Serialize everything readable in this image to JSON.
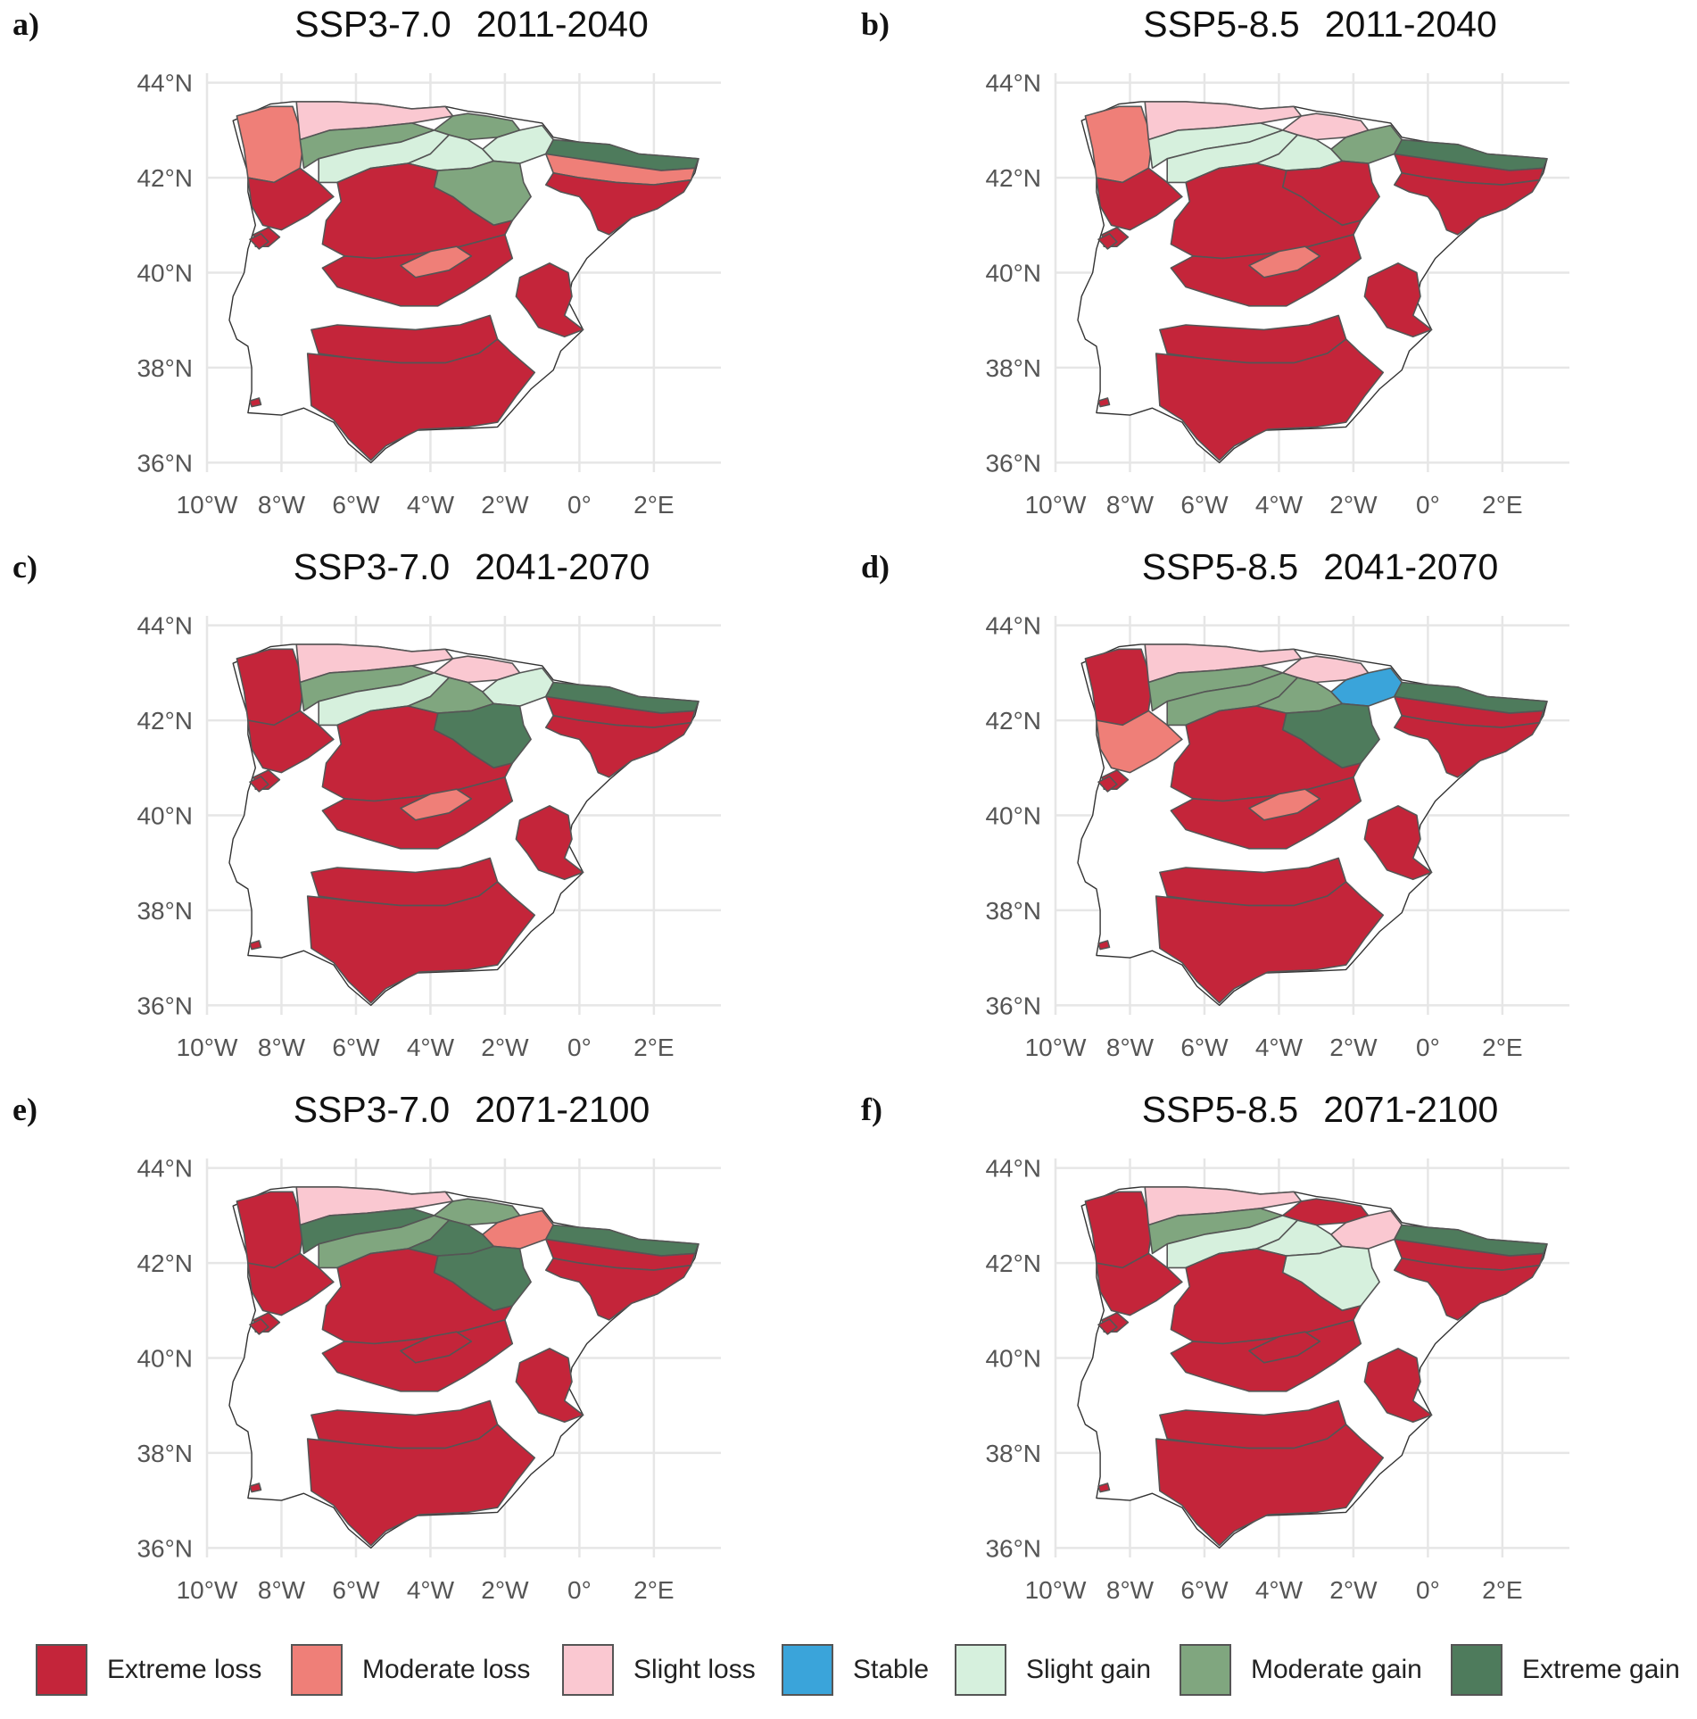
{
  "categories": [
    {
      "key": "EL",
      "label": "Extreme loss",
      "color": "#C4253A"
    },
    {
      "key": "ML",
      "label": "Moderate loss",
      "color": "#EF7F78"
    },
    {
      "key": "SL",
      "label": "Slight loss",
      "color": "#FAC8D1"
    },
    {
      "key": "ST",
      "label": "Stable",
      "color": "#3AA4DA"
    },
    {
      "key": "SG",
      "label": "Slight gain",
      "color": "#D6F0DD"
    },
    {
      "key": "MG",
      "label": "Moderate gain",
      "color": "#80A67F"
    },
    {
      "key": "XG",
      "label": "Extreme gain",
      "color": "#4E7B5C"
    }
  ],
  "axes": {
    "lon_range": [
      -10,
      3.8
    ],
    "lat_range": [
      35.8,
      44.2
    ],
    "x_ticks": [
      {
        "value": -10,
        "label": "10°W"
      },
      {
        "value": -8,
        "label": "8°W"
      },
      {
        "value": -6,
        "label": "6°W"
      },
      {
        "value": -4,
        "label": "4°W"
      },
      {
        "value": -2,
        "label": "2°W"
      },
      {
        "value": 0,
        "label": "0°"
      },
      {
        "value": 2,
        "label": "2°E"
      }
    ],
    "y_ticks": [
      {
        "value": 44,
        "label": "44°N"
      },
      {
        "value": 42,
        "label": "42°N"
      },
      {
        "value": 40,
        "label": "40°N"
      },
      {
        "value": 38,
        "label": "38°N"
      },
      {
        "value": 36,
        "label": "36°N"
      }
    ]
  },
  "panels": [
    {
      "id": "a",
      "letter": "a)",
      "scenario": "SSP3-7.0",
      "period": "2011-2040",
      "regions": {
        "galicia_w": "ML",
        "galicia_s": "EL",
        "asturias": "SL",
        "leon_n": "MG",
        "cantabria": "MG",
        "duero_n": "SG",
        "ebro_head": "SG",
        "navarra": "SG",
        "iberico": "MG",
        "pyrenees": "XG",
        "pyr_south": "ML",
        "cataluna": "EL",
        "duero": "EL",
        "tajo": "EL",
        "tajo_c": "ML",
        "guadiana": "EL",
        "valencia": "EL",
        "andalucia": "EL",
        "porto": "EL",
        "small_w": "EL",
        "small_sw": "EL"
      }
    },
    {
      "id": "b",
      "letter": "b)",
      "scenario": "SSP5-8.5",
      "period": "2011-2040",
      "regions": {
        "galicia_w": "ML",
        "galicia_s": "EL",
        "asturias": "SL",
        "leon_n": "SG",
        "cantabria": "SL",
        "duero_n": "SG",
        "ebro_head": "SG",
        "navarra": "MG",
        "iberico": "EL",
        "pyrenees": "XG",
        "pyr_south": "EL",
        "cataluna": "EL",
        "duero": "EL",
        "tajo": "EL",
        "tajo_c": "ML",
        "guadiana": "EL",
        "valencia": "EL",
        "andalucia": "EL",
        "porto": "EL",
        "small_w": "EL",
        "small_sw": "EL"
      }
    },
    {
      "id": "c",
      "letter": "c)",
      "scenario": "SSP3-7.0",
      "period": "2041-2070",
      "regions": {
        "galicia_w": "EL",
        "galicia_s": "EL",
        "asturias": "SL",
        "leon_n": "MG",
        "cantabria": "SL",
        "duero_n": "SG",
        "ebro_head": "MG",
        "navarra": "SG",
        "iberico": "XG",
        "pyrenees": "XG",
        "pyr_south": "EL",
        "cataluna": "EL",
        "duero": "EL",
        "tajo": "EL",
        "tajo_c": "ML",
        "guadiana": "EL",
        "valencia": "EL",
        "andalucia": "EL",
        "porto": "EL",
        "small_w": "EL",
        "small_sw": "EL"
      }
    },
    {
      "id": "d",
      "letter": "d)",
      "scenario": "SSP5-8.5",
      "period": "2041-2070",
      "regions": {
        "galicia_w": "EL",
        "galicia_s": "ML",
        "asturias": "SL",
        "leon_n": "MG",
        "cantabria": "SL",
        "duero_n": "MG",
        "ebro_head": "MG",
        "navarra": "ST",
        "iberico": "XG",
        "pyrenees": "XG",
        "pyr_south": "EL",
        "cataluna": "EL",
        "duero": "EL",
        "tajo": "EL",
        "tajo_c": "ML",
        "guadiana": "EL",
        "valencia": "EL",
        "andalucia": "EL",
        "porto": "EL",
        "small_w": "EL",
        "small_sw": "EL"
      }
    },
    {
      "id": "e",
      "letter": "e)",
      "scenario": "SSP3-7.0",
      "period": "2071-2100",
      "regions": {
        "galicia_w": "EL",
        "galicia_s": "EL",
        "asturias": "SL",
        "leon_n": "XG",
        "cantabria": "MG",
        "duero_n": "MG",
        "ebro_head": "XG",
        "navarra": "ML",
        "iberico": "XG",
        "pyrenees": "XG",
        "pyr_south": "EL",
        "cataluna": "EL",
        "duero": "EL",
        "tajo": "EL",
        "tajo_c": "EL",
        "guadiana": "EL",
        "valencia": "EL",
        "andalucia": "EL",
        "porto": "EL",
        "small_w": "EL",
        "small_sw": "EL"
      }
    },
    {
      "id": "f",
      "letter": "f)",
      "scenario": "SSP5-8.5",
      "period": "2071-2100",
      "regions": {
        "galicia_w": "EL",
        "galicia_s": "EL",
        "asturias": "SL",
        "leon_n": "MG",
        "cantabria": "EL",
        "duero_n": "SG",
        "ebro_head": "SG",
        "navarra": "SL",
        "iberico": "SG",
        "pyrenees": "XG",
        "pyr_south": "EL",
        "cataluna": "EL",
        "duero": "EL",
        "tajo": "EL",
        "tajo_c": "EL",
        "guadiana": "EL",
        "valencia": "EL",
        "andalucia": "EL",
        "porto": "EL",
        "small_w": "EL",
        "small_sw": "EL"
      }
    }
  ]
}
